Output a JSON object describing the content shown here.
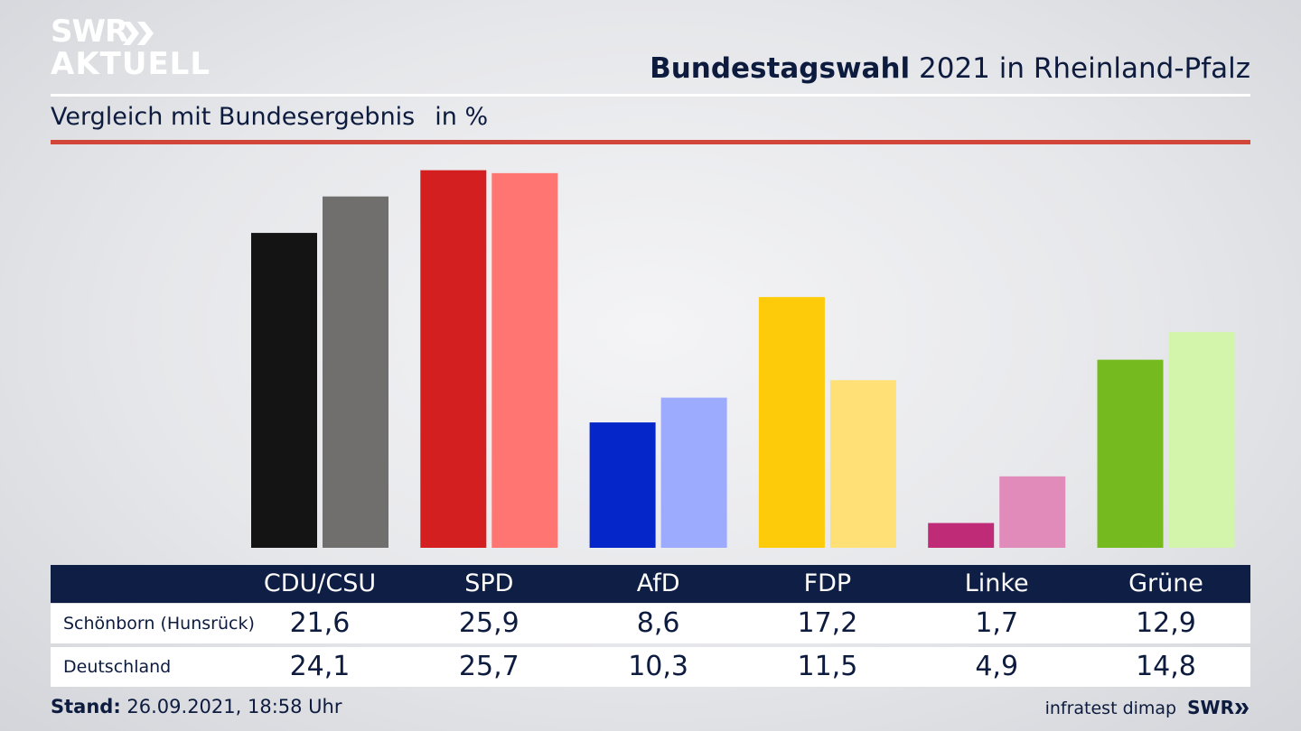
{
  "header": {
    "logo_line1": "SWR",
    "logo_line2": "AKTUELL",
    "title_bold": "Bundestagswahl",
    "title_rest": " 2021 in Rheinland-Pfalz",
    "subtitle": "Vergleich mit Bundesergebnis",
    "unit": "in %"
  },
  "colors": {
    "CDU/CSU": [
      "#141414",
      "#706f6d"
    ],
    "SPD": [
      "#d41f20",
      "#ff7571"
    ],
    "AfD": [
      "#0526c8",
      "#9cabfd"
    ],
    "FDP": [
      "#fecb0b",
      "#fee077"
    ],
    "Linke": [
      "#bf2b77",
      "#e18bba"
    ],
    "Grüne": [
      "#75bb1f",
      "#d3f5ab"
    ],
    "header_band": "#0f1e45",
    "accent_rule": "#d2463a"
  },
  "chart_data": {
    "type": "bar",
    "categories": [
      "CDU/CSU",
      "SPD",
      "AfD",
      "FDP",
      "Linke",
      "Grüne"
    ],
    "series": [
      {
        "name": "Schönborn (Hunsrück)",
        "values": [
          21.6,
          25.9,
          8.6,
          17.2,
          1.7,
          12.9
        ]
      },
      {
        "name": "Deutschland",
        "values": [
          24.1,
          25.7,
          10.3,
          11.5,
          4.9,
          14.8
        ]
      }
    ],
    "ylim": [
      0,
      26
    ]
  },
  "table": {
    "columns": [
      "CDU/CSU",
      "SPD",
      "AfD",
      "FDP",
      "Linke",
      "Grüne"
    ],
    "rows": [
      {
        "label": "Schönborn (Hunsrück)",
        "values": [
          "21,6",
          "25,9",
          "8,6",
          "17,2",
          "1,7",
          "12,9"
        ]
      },
      {
        "label": "Deutschland",
        "values": [
          "24,1",
          "25,7",
          "10,3",
          "11,5",
          "4,9",
          "14,8"
        ]
      }
    ]
  },
  "footer": {
    "stand_label": "Stand:",
    "stand_value": " 26.09.2021, 18:58 Uhr",
    "source": "infratest dimap",
    "brand": "SWR"
  }
}
